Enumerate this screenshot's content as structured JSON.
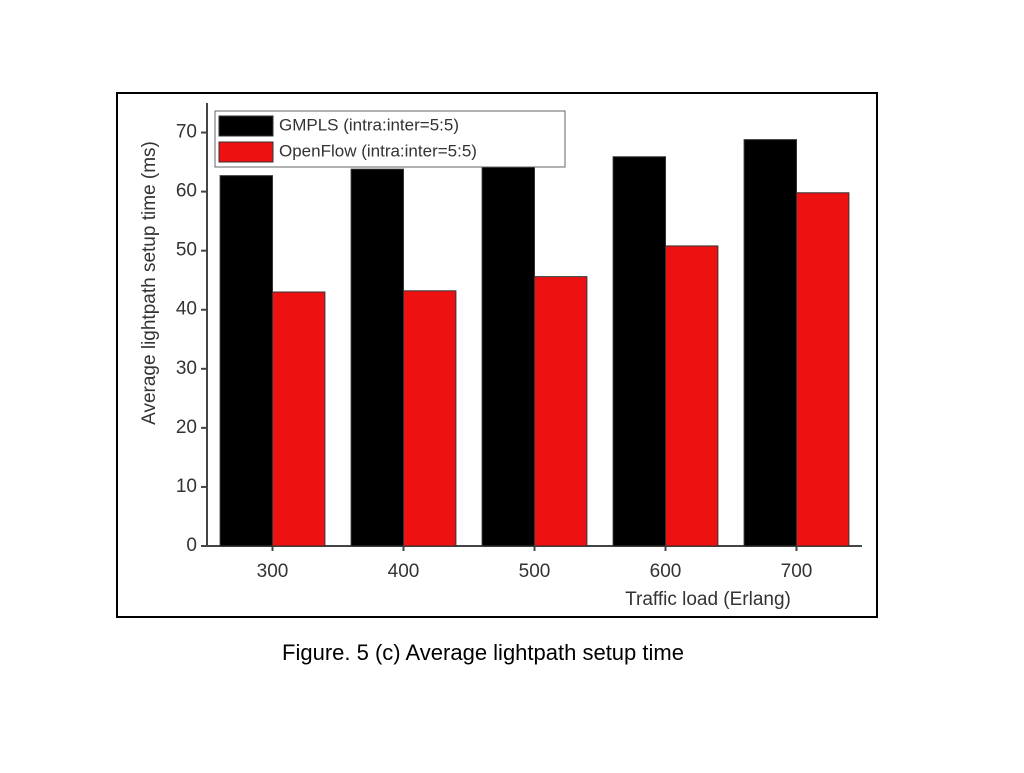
{
  "chart_data": {
    "type": "bar",
    "caption": "Figure. 5 (c) Average lightpath setup time",
    "xlabel": "Traffic load (Erlang)",
    "ylabel": "Average lightpath setup time (ms)",
    "categories": [
      "300",
      "400",
      "500",
      "600",
      "700"
    ],
    "series": [
      {
        "name": "GMPLS  (intra:inter=5:5)",
        "color": "#000000",
        "values": [
          62.7,
          63.8,
          64.9,
          65.9,
          68.8
        ]
      },
      {
        "name": "OpenFlow (intra:inter=5:5)",
        "color": "#ee1111",
        "values": [
          43,
          43.2,
          45.6,
          50.8,
          59.8
        ]
      }
    ],
    "ylim": [
      0,
      75
    ],
    "yticks": [
      0,
      10,
      20,
      30,
      40,
      50,
      60,
      70
    ],
    "legend": "upper-left"
  }
}
